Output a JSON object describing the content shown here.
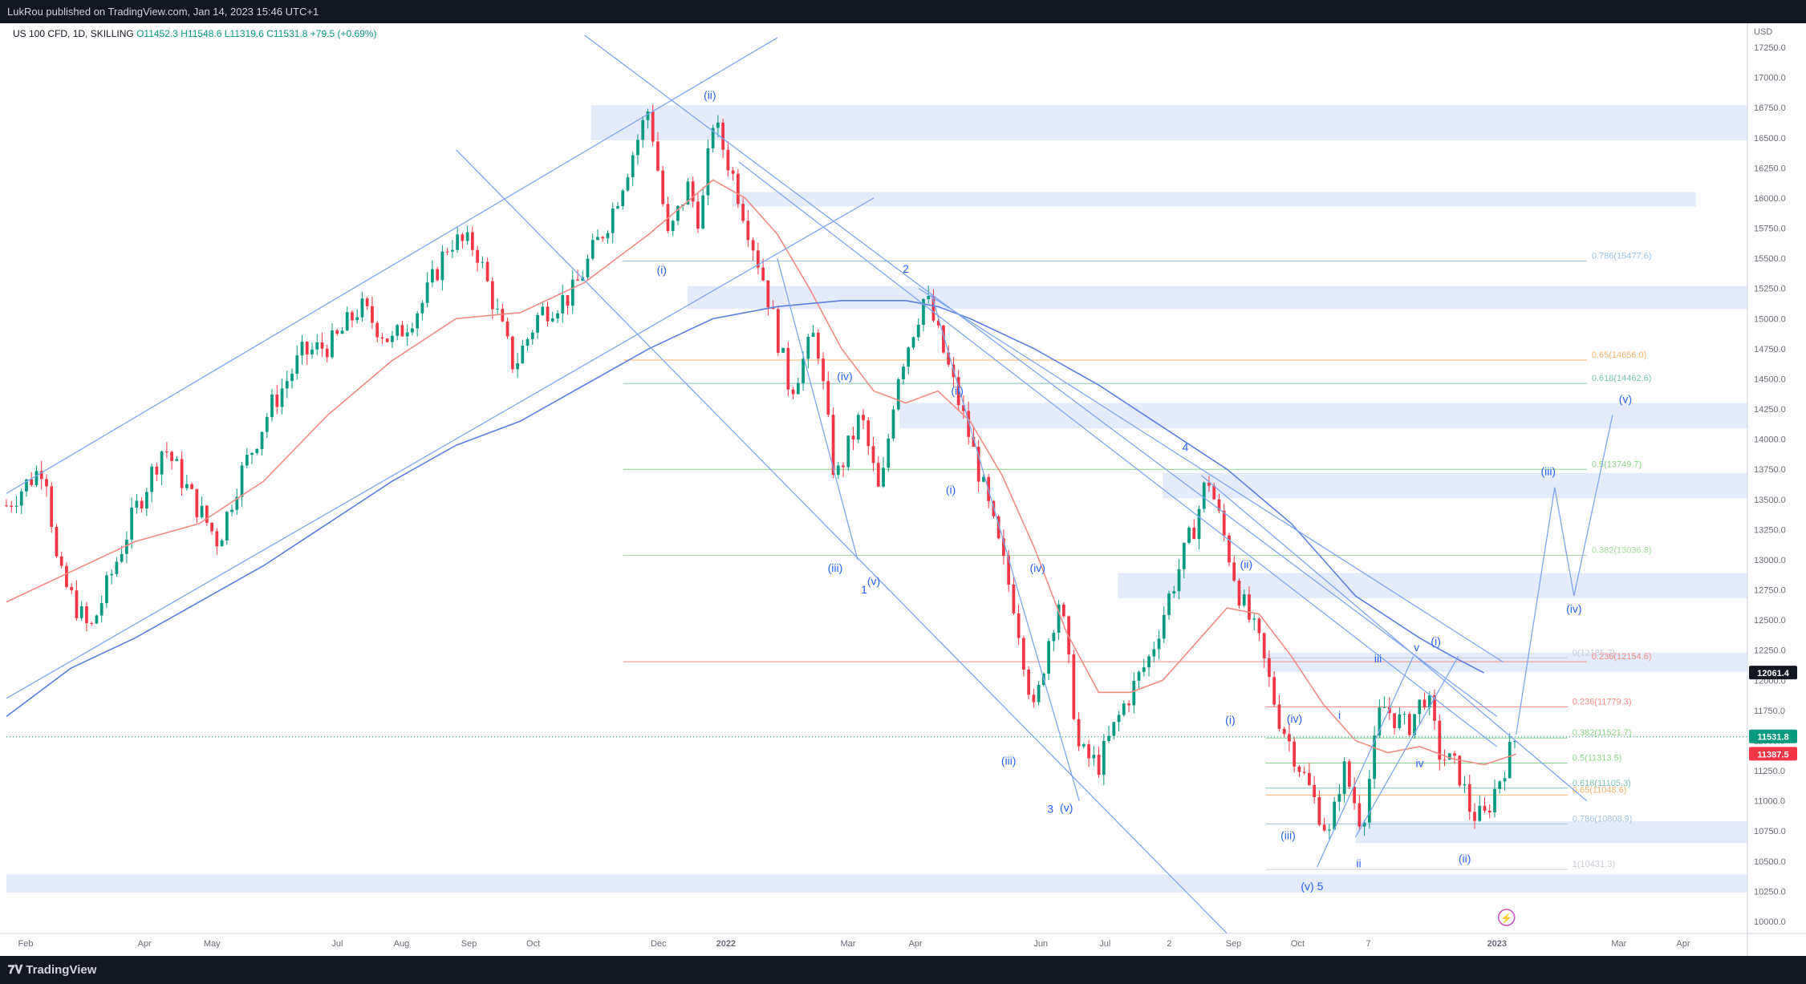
{
  "header": {
    "published_by": "LukRou published on TradingView.com, Jan 14, 2023 15:46 UTC+1"
  },
  "legend": {
    "symbol": "US 100 CFD, 1D, SKILLING",
    "open": "O11452.3",
    "high": "H11548.6",
    "low": "L11319.6",
    "close": "C11531.8",
    "change": "+79.5 (+0.69%)"
  },
  "footer": {
    "logo_text": "TradingView"
  },
  "price_axis": {
    "currency": "USD",
    "ticks": [
      17250,
      17000,
      16750,
      16500,
      16250,
      16000,
      15750,
      15500,
      15250,
      15000,
      14750,
      14500,
      14250,
      14000,
      13750,
      13500,
      13250,
      13000,
      12750,
      12500,
      12250,
      12000,
      11750,
      11500,
      11250,
      11000,
      10750,
      10500,
      10250,
      10000
    ],
    "tick_labels": [
      "17250.0",
      "17000.0",
      "16750.0",
      "16500.0",
      "16250.0",
      "16000.0",
      "15750.0",
      "15500.0",
      "15250.0",
      "15000.0",
      "14750.0",
      "14500.0",
      "14250.0",
      "14000.0",
      "13750.0",
      "13500.0",
      "13250.0",
      "13000.0",
      "12750.0",
      "12500.0",
      "12250.0",
      "12000.0",
      "11750.0",
      "11500.0",
      "11250.0",
      "11000.0",
      "10750.0",
      "10500.0",
      "10250.0",
      "10000.0"
    ],
    "tags": [
      {
        "label": "12061.4",
        "value": 12061.4,
        "color": "#131722"
      },
      {
        "label": "11531.8",
        "value": 11531.8,
        "color": "#089981"
      },
      {
        "label": "11387.5",
        "value": 11387.5,
        "color": "#f23645"
      }
    ]
  },
  "time_axis": {
    "labels": [
      {
        "label": "Feb",
        "t": 0.3
      },
      {
        "label": "Apr",
        "t": 2.15
      },
      {
        "label": "May",
        "t": 3.2
      },
      {
        "label": "Jul",
        "t": 5.15
      },
      {
        "label": "Aug",
        "t": 6.15
      },
      {
        "label": "Sep",
        "t": 7.2
      },
      {
        "label": "Oct",
        "t": 8.2
      },
      {
        "label": "Dec",
        "t": 10.15
      },
      {
        "label": "2022",
        "t": 11.2
      },
      {
        "label": "Mar",
        "t": 13.1
      },
      {
        "label": "Apr",
        "t": 14.15
      },
      {
        "label": "Jun",
        "t": 16.1
      },
      {
        "label": "Jul",
        "t": 17.1
      },
      {
        "label": "2",
        "t": 18.1
      },
      {
        "label": "Sep",
        "t": 19.1
      },
      {
        "label": "Oct",
        "t": 20.1
      },
      {
        "label": "7",
        "t": 21.2
      },
      {
        "label": "2023",
        "t": 23.2
      },
      {
        "label": "Mar",
        "t": 25.1
      },
      {
        "label": "Apr",
        "t": 26.1
      }
    ]
  },
  "chart_data": {
    "type": "candlestick",
    "title": "US 100 CFD, 1D, SKILLING",
    "ylabel": "USD",
    "ylim": [
      9900,
      17450
    ],
    "colors": {
      "up": "#089981",
      "down": "#f23645",
      "ma_short": "#f28b82",
      "ma_long": "#5b7fe0",
      "lines": "#7ea6f0",
      "zone": "#dbe5fb"
    },
    "price_path": [
      [
        0.0,
        13450
      ],
      [
        0.6,
        13800
      ],
      [
        0.8,
        12900
      ],
      [
        1.3,
        12400
      ],
      [
        2.0,
        13400
      ],
      [
        2.45,
        13950
      ],
      [
        2.9,
        13500
      ],
      [
        3.3,
        13150
      ],
      [
        3.6,
        13650
      ],
      [
        4.1,
        14250
      ],
      [
        4.6,
        14700
      ],
      [
        5.1,
        14800
      ],
      [
        5.5,
        15100
      ],
      [
        6.0,
        14800
      ],
      [
        6.5,
        15150
      ],
      [
        6.9,
        15650
      ],
      [
        7.3,
        15600
      ],
      [
        7.9,
        14600
      ],
      [
        8.3,
        15050
      ],
      [
        8.8,
        15200
      ],
      [
        9.4,
        15850
      ],
      [
        9.8,
        16450
      ],
      [
        10.0,
        16750
      ],
      [
        10.3,
        15650
      ],
      [
        10.6,
        16100
      ],
      [
        10.8,
        15800
      ],
      [
        11.0,
        16650
      ],
      [
        11.3,
        16200
      ],
      [
        11.8,
        15300
      ],
      [
        12.2,
        14400
      ],
      [
        12.6,
        14900
      ],
      [
        12.9,
        13650
      ],
      [
        13.3,
        14200
      ],
      [
        13.6,
        13500
      ],
      [
        13.85,
        14500
      ],
      [
        14.3,
        15200
      ],
      [
        14.6,
        14700
      ],
      [
        15.0,
        14000
      ],
      [
        15.3,
        13400
      ],
      [
        15.7,
        12600
      ],
      [
        16.0,
        11700
      ],
      [
        16.2,
        12300
      ],
      [
        16.4,
        12700
      ],
      [
        16.7,
        11400
      ],
      [
        17.0,
        11300
      ],
      [
        17.4,
        11800
      ],
      [
        17.8,
        12200
      ],
      [
        18.1,
        12700
      ],
      [
        18.5,
        13300
      ],
      [
        18.7,
        13700
      ],
      [
        18.9,
        13300
      ],
      [
        19.2,
        12700
      ],
      [
        19.5,
        12300
      ],
      [
        19.8,
        11700
      ],
      [
        20.2,
        11200
      ],
      [
        20.6,
        10700
      ],
      [
        20.8,
        11300
      ],
      [
        21.1,
        10800
      ],
      [
        21.4,
        11800
      ],
      [
        21.8,
        11600
      ],
      [
        22.1,
        11900
      ],
      [
        22.3,
        11400
      ],
      [
        22.6,
        11250
      ],
      [
        22.8,
        10900
      ],
      [
        23.0,
        10850
      ],
      [
        23.1,
        11000
      ],
      [
        23.4,
        11400
      ],
      [
        23.5,
        11531.8
      ]
    ],
    "ma_short": [
      [
        0.0,
        12650
      ],
      [
        1.0,
        12900
      ],
      [
        2.0,
        13150
      ],
      [
        3.0,
        13300
      ],
      [
        4.0,
        13650
      ],
      [
        5.0,
        14200
      ],
      [
        6.0,
        14650
      ],
      [
        7.0,
        15000
      ],
      [
        8.0,
        15050
      ],
      [
        9.0,
        15300
      ],
      [
        10.0,
        15700
      ],
      [
        11.0,
        16150
      ],
      [
        11.5,
        16000
      ],
      [
        12.0,
        15700
      ],
      [
        12.5,
        15250
      ],
      [
        13.0,
        14750
      ],
      [
        13.5,
        14400
      ],
      [
        14.0,
        14300
      ],
      [
        14.5,
        14400
      ],
      [
        15.0,
        14150
      ],
      [
        15.5,
        13700
      ],
      [
        16.0,
        13100
      ],
      [
        16.5,
        12400
      ],
      [
        17.0,
        11900
      ],
      [
        17.5,
        11900
      ],
      [
        18.0,
        12000
      ],
      [
        18.5,
        12300
      ],
      [
        19.0,
        12600
      ],
      [
        19.5,
        12550
      ],
      [
        20.0,
        12200
      ],
      [
        20.5,
        11800
      ],
      [
        21.0,
        11500
      ],
      [
        21.5,
        11400
      ],
      [
        22.0,
        11450
      ],
      [
        22.5,
        11350
      ],
      [
        23.0,
        11300
      ],
      [
        23.5,
        11387.5
      ]
    ],
    "ma_long": [
      [
        0.0,
        11700
      ],
      [
        1.0,
        12100
      ],
      [
        2.0,
        12350
      ],
      [
        3.0,
        12650
      ],
      [
        4.0,
        12950
      ],
      [
        5.0,
        13300
      ],
      [
        6.0,
        13650
      ],
      [
        7.0,
        13950
      ],
      [
        8.0,
        14150
      ],
      [
        9.0,
        14450
      ],
      [
        10.0,
        14750
      ],
      [
        11.0,
        15000
      ],
      [
        12.0,
        15100
      ],
      [
        13.0,
        15150
      ],
      [
        14.0,
        15150
      ],
      [
        14.5,
        15100
      ],
      [
        15.0,
        15000
      ],
      [
        16.0,
        14750
      ],
      [
        17.0,
        14450
      ],
      [
        18.0,
        14100
      ],
      [
        19.0,
        13750
      ],
      [
        20.0,
        13300
      ],
      [
        20.5,
        13000
      ],
      [
        21.0,
        12700
      ],
      [
        22.0,
        12350
      ],
      [
        22.5,
        12200
      ],
      [
        23.0,
        12061.4
      ]
    ],
    "zones": [
      {
        "t0": 9.1,
        "t1": 27.1,
        "p0": 16480,
        "p1": 16770
      },
      {
        "t0": 11.3,
        "t1": 26.3,
        "p0": 15930,
        "p1": 16050
      },
      {
        "t0": 10.6,
        "t1": 27.1,
        "p0": 15080,
        "p1": 15270
      },
      {
        "t0": 13.9,
        "t1": 27.1,
        "p0": 14090,
        "p1": 14300
      },
      {
        "t0": 18.0,
        "t1": 27.1,
        "p0": 13510,
        "p1": 13720
      },
      {
        "t0": 17.3,
        "t1": 27.1,
        "p0": 12680,
        "p1": 12890
      },
      {
        "t0": 19.6,
        "t1": 27.1,
        "p0": 12070,
        "p1": 12230
      },
      {
        "t0": 21.0,
        "t1": 27.1,
        "p0": 10650,
        "p1": 10830
      },
      {
        "t0": 0.0,
        "t1": 27.1,
        "p0": 10240,
        "p1": 10390
      }
    ],
    "fib_levels": [
      {
        "label": "0.786(15477.6)",
        "value": 15477.6,
        "t0": 9.6,
        "t1": 24.6,
        "color": "#9ec2e6"
      },
      {
        "label": "0.65(14656.0)",
        "value": 14656.0,
        "t0": 9.6,
        "t1": 24.6,
        "color": "#f5b46b"
      },
      {
        "label": "0.618(14462.6)",
        "value": 14462.6,
        "t0": 9.6,
        "t1": 24.6,
        "color": "#7fc4b8"
      },
      {
        "label": "0.5(13749.7)",
        "value": 13749.7,
        "t0": 9.6,
        "t1": 24.6,
        "color": "#8bd18b"
      },
      {
        "label": "0.382(13036.8)",
        "value": 13036.8,
        "t0": 9.6,
        "t1": 24.6,
        "color": "#a6d9a0"
      },
      {
        "label": "0(12185.7)",
        "value": 12185.7,
        "t0": 19.6,
        "t1": 24.3,
        "color": "#c8ccd6"
      },
      {
        "label": "0.236(12154.6)",
        "value": 12154.6,
        "t0": 9.6,
        "t1": 24.6,
        "color": "#f28b82"
      },
      {
        "label": "0.236(11779.3)",
        "value": 11779.3,
        "t0": 19.6,
        "t1": 24.3,
        "color": "#f28b82"
      },
      {
        "label": "0.382(11521.7)",
        "value": 11521.7,
        "t0": 19.6,
        "t1": 24.3,
        "color": "#8bd18b"
      },
      {
        "label": "0.5(11313.5)",
        "value": 11313.5,
        "t0": 19.6,
        "t1": 24.3,
        "color": "#8bd18b"
      },
      {
        "label": "0.618(11105.3)",
        "value": 11105.3,
        "t0": 19.6,
        "t1": 24.3,
        "color": "#7fc4b8"
      },
      {
        "label": "0.65(11048.6)",
        "value": 11048.6,
        "t0": 19.6,
        "t1": 24.3,
        "color": "#f5b46b"
      },
      {
        "label": "0.786(10808.9)",
        "value": 10808.9,
        "t0": 19.6,
        "t1": 24.3,
        "color": "#9ec2e6"
      },
      {
        "label": "1(10431.3)",
        "value": 10431.3,
        "t0": 19.6,
        "t1": 24.3,
        "color": "#c8ccd6"
      }
    ],
    "trend_lines": [
      {
        "t0": 0.0,
        "p0": 13550,
        "t1": 12.0,
        "p1": 17330
      },
      {
        "t0": 0.0,
        "p0": 11850,
        "t1": 13.5,
        "p1": 16000
      },
      {
        "t0": 7.0,
        "p0": 16400,
        "t1": 19.0,
        "p1": 9900
      },
      {
        "t0": 9.0,
        "p0": 17350,
        "t1": 23.2,
        "p1": 11700
      },
      {
        "t0": 11.4,
        "p0": 16300,
        "t1": 23.2,
        "p1": 11450
      },
      {
        "t0": 14.2,
        "p0": 15250,
        "t1": 23.3,
        "p1": 12150
      },
      {
        "t0": 18.6,
        "p0": 13700,
        "t1": 24.6,
        "p1": 11000
      },
      {
        "t0": 20.4,
        "p0": 10450,
        "t1": 21.9,
        "p1": 12200
      },
      {
        "t0": 21.0,
        "p0": 10700,
        "t1": 22.6,
        "p1": 12200
      },
      {
        "t0": 23.5,
        "p0": 11550,
        "t1": 24.1,
        "p1": 13600
      },
      {
        "t0": 24.1,
        "p0": 13600,
        "t1": 24.4,
        "p1": 12700
      },
      {
        "t0": 24.4,
        "p0": 12700,
        "t1": 25.0,
        "p1": 14200
      },
      {
        "t0": 12.0,
        "p0": 15500,
        "t1": 13.25,
        "p1": 13000
      },
      {
        "t0": 14.4,
        "p0": 15200,
        "t1": 16.7,
        "p1": 11000
      }
    ],
    "wave_labels": [
      {
        "text": "(ii)",
        "t": 10.95,
        "p": 16820
      },
      {
        "text": "(i)",
        "t": 10.2,
        "p": 15370
      },
      {
        "text": "2",
        "t": 14.0,
        "p": 15380
      },
      {
        "text": "(iv)",
        "t": 13.05,
        "p": 14490
      },
      {
        "text": "(ii)",
        "t": 14.8,
        "p": 14370
      },
      {
        "text": "(i)",
        "t": 14.7,
        "p": 13550
      },
      {
        "text": "(iii)",
        "t": 12.9,
        "p": 12900
      },
      {
        "text": "(v)",
        "t": 13.5,
        "p": 12790
      },
      {
        "text": "1",
        "t": 13.35,
        "p": 12720
      },
      {
        "text": "(iv)",
        "t": 16.05,
        "p": 12900
      },
      {
        "text": "(iii)",
        "t": 15.6,
        "p": 11300
      },
      {
        "text": "3",
        "t": 16.25,
        "p": 10900
      },
      {
        "text": "(v)",
        "t": 16.5,
        "p": 10910
      },
      {
        "text": "4",
        "t": 18.35,
        "p": 13900
      },
      {
        "text": "(ii)",
        "t": 19.3,
        "p": 12930
      },
      {
        "text": "(i)",
        "t": 19.05,
        "p": 11640
      },
      {
        "text": "(iv)",
        "t": 20.05,
        "p": 11650
      },
      {
        "text": "(iii)",
        "t": 19.95,
        "p": 10680
      },
      {
        "text": "(v)",
        "t": 20.25,
        "p": 10260
      },
      {
        "text": "5",
        "t": 20.45,
        "p": 10260
      },
      {
        "text": "i",
        "t": 20.75,
        "p": 11680
      },
      {
        "text": "ii",
        "t": 21.05,
        "p": 10450
      },
      {
        "text": "iii",
        "t": 21.35,
        "p": 12150
      },
      {
        "text": "v",
        "t": 21.95,
        "p": 12240
      },
      {
        "text": "(i)",
        "t": 22.25,
        "p": 12290
      },
      {
        "text": "iv",
        "t": 22.0,
        "p": 11280
      },
      {
        "text": "(ii)",
        "t": 22.7,
        "p": 10490
      },
      {
        "text": "(iii)",
        "t": 24.0,
        "p": 13700
      },
      {
        "text": "(iv)",
        "t": 24.4,
        "p": 12560
      },
      {
        "text": "(v)",
        "t": 25.2,
        "p": 14300
      }
    ]
  }
}
